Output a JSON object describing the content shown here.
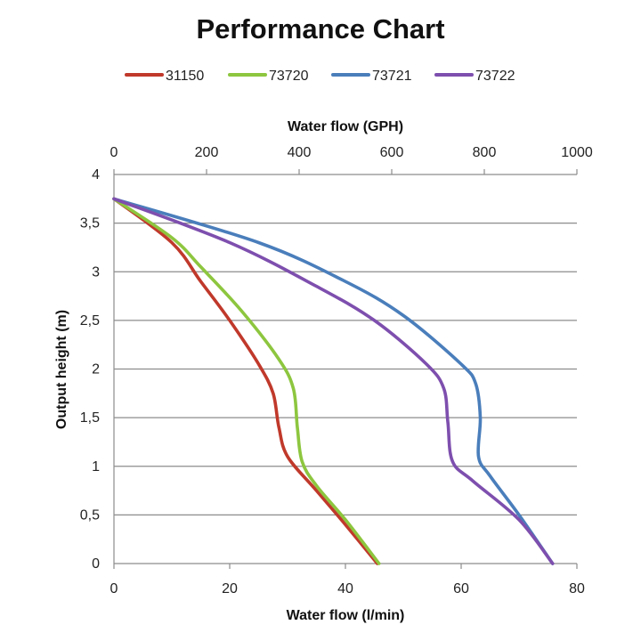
{
  "chart_data": {
    "type": "line",
    "title": "Performance Chart",
    "xlabel": "Water flow (l/min)",
    "x2label": "Water flow (GPH)",
    "ylabel": "Output height (m)",
    "xlim": [
      0,
      80
    ],
    "x2lim": [
      0,
      1000
    ],
    "ylim": [
      0,
      4
    ],
    "x_ticks": [
      "0",
      "20",
      "40",
      "60",
      "80"
    ],
    "x2_ticks": [
      "0",
      "200",
      "400",
      "600",
      "800",
      "1000"
    ],
    "y_ticks": [
      "0",
      "0,5",
      "1",
      "1,5",
      "2",
      "2,5",
      "3",
      "3,5",
      "4"
    ],
    "grid": "horizontal",
    "legend_position": "top",
    "series": [
      {
        "name": "31150",
        "color": "#c0392b",
        "points": [
          [
            45.5,
            0
          ],
          [
            40,
            0.4
          ],
          [
            35,
            0.75
          ],
          [
            30,
            1.1
          ],
          [
            28.5,
            1.4
          ],
          [
            27.5,
            1.75
          ],
          [
            25,
            2.05
          ],
          [
            20,
            2.5
          ],
          [
            15,
            2.9
          ],
          [
            10,
            3.3
          ],
          [
            0,
            3.75
          ]
        ]
      },
      {
        "name": "73720",
        "color": "#8dc63f",
        "points": [
          [
            45.8,
            0
          ],
          [
            40,
            0.45
          ],
          [
            35,
            0.8
          ],
          [
            32.5,
            1.05
          ],
          [
            31.7,
            1.4
          ],
          [
            31,
            1.8
          ],
          [
            28.5,
            2.1
          ],
          [
            22,
            2.6
          ],
          [
            15,
            3.05
          ],
          [
            10,
            3.35
          ],
          [
            0,
            3.75
          ]
        ]
      },
      {
        "name": "73721",
        "color": "#4a7ebb",
        "points": [
          [
            75.8,
            0
          ],
          [
            70,
            0.5
          ],
          [
            65,
            0.9
          ],
          [
            63,
            1.1
          ],
          [
            63.3,
            1.5
          ],
          [
            62.5,
            1.85
          ],
          [
            60,
            2.05
          ],
          [
            50,
            2.55
          ],
          [
            40,
            2.9
          ],
          [
            25,
            3.3
          ],
          [
            0,
            3.75
          ]
        ]
      },
      {
        "name": "73722",
        "color": "#7e4fae",
        "points": [
          [
            75.8,
            0
          ],
          [
            70,
            0.45
          ],
          [
            62,
            0.85
          ],
          [
            58.5,
            1.05
          ],
          [
            57.7,
            1.45
          ],
          [
            57,
            1.8
          ],
          [
            54,
            2.05
          ],
          [
            45,
            2.5
          ],
          [
            35,
            2.85
          ],
          [
            20,
            3.3
          ],
          [
            0,
            3.75
          ]
        ]
      }
    ]
  }
}
